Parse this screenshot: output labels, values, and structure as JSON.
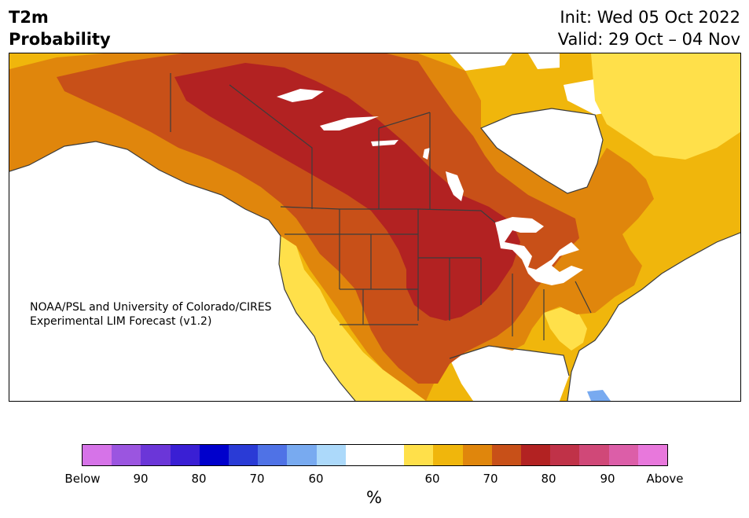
{
  "header": {
    "title_line1": "T2m",
    "title_line2": "Probability",
    "init_text": "Init: Wed 05 Oct 2022",
    "valid_text": "Valid: 29 Oct – 04 Nov"
  },
  "credit": {
    "line1": "NOAA/PSL and University of Colorado/CIRES",
    "line2": "Experimental LIM Forecast (v1.2)"
  },
  "colorbar": {
    "unit_label": "%",
    "colors": [
      "#d673e8",
      "#9b55e0",
      "#6b36d8",
      "#3a1fd4",
      "#0000cc",
      "#2a3bd6",
      "#4f72e6",
      "#78aaf0",
      "#acd9fa",
      "#ffffff",
      "#ffffff",
      "#ffe04a",
      "#f0b60c",
      "#e0860c",
      "#c85018",
      "#b22222",
      "#c03248",
      "#d04878",
      "#dc5ea8",
      "#e878dc"
    ],
    "tick_labels": [
      "Below",
      "90",
      "80",
      "70",
      "60",
      "60",
      "70",
      "80",
      "90",
      "Above"
    ]
  },
  "map": {
    "palette": {
      "prob_50_60": "#ffe04a",
      "prob_60_70": "#f0b60c",
      "prob_70_80": "#e0860c",
      "prob_80_90": "#c85018",
      "prob_90_plus": "#b22222",
      "below_60_70": "#78aaf0",
      "below_50_60": "#acd9fa",
      "border": "#3c3c3c"
    }
  }
}
